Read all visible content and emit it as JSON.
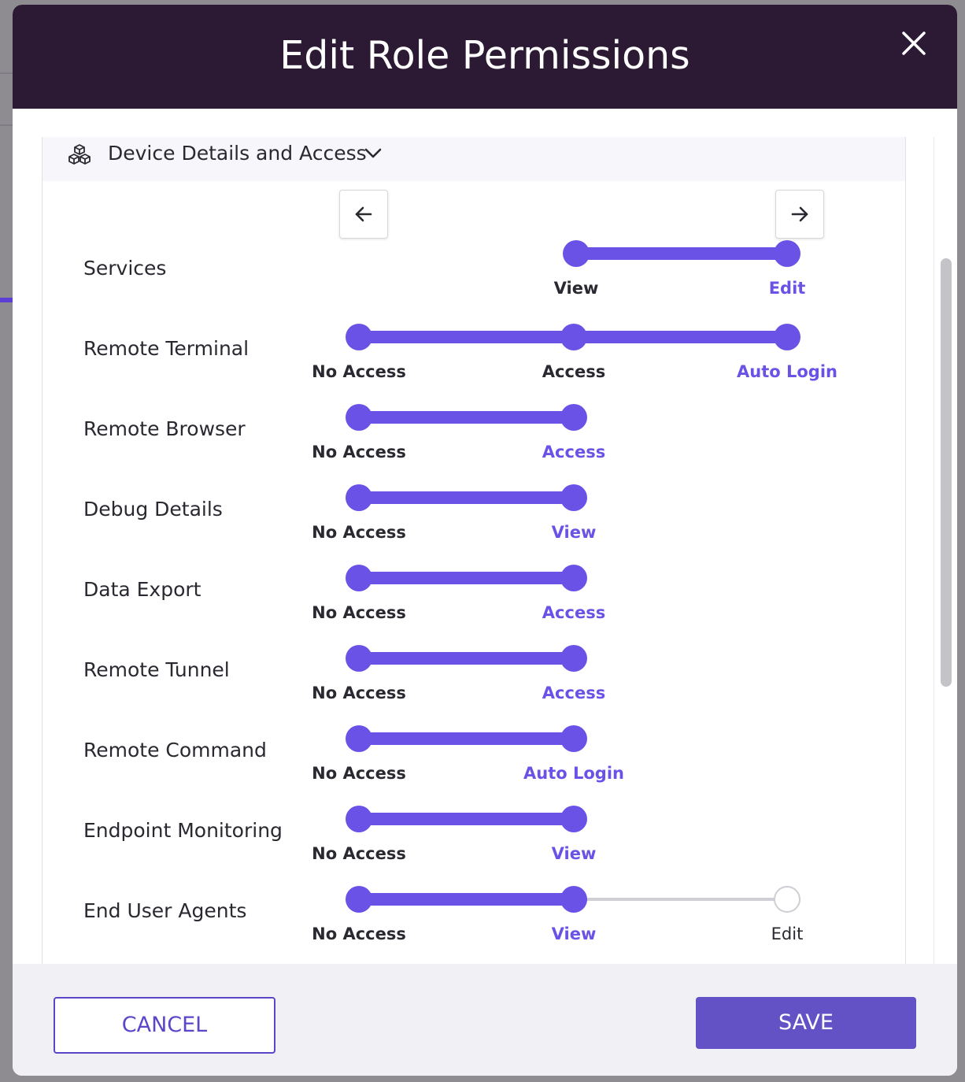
{
  "modal": {
    "title": "Edit Role Permissions",
    "close_icon": "close-icon"
  },
  "section": {
    "title": "Device Details and Access",
    "icon": "cubes-icon",
    "toggle_icon": "chevron-down-icon"
  },
  "nav": {
    "prev_icon": "arrow-left-icon",
    "next_icon": "arrow-right-icon"
  },
  "permissions": [
    {
      "label": "Services",
      "steps": [
        "View",
        "Edit"
      ],
      "selected": 1
    },
    {
      "label": "Remote Terminal",
      "steps": [
        "No Access",
        "Access",
        "Auto Login"
      ],
      "selected": 2
    },
    {
      "label": "Remote Browser",
      "steps": [
        "No Access",
        "Access"
      ],
      "selected": 1
    },
    {
      "label": "Debug Details",
      "steps": [
        "No Access",
        "View"
      ],
      "selected": 1
    },
    {
      "label": "Data Export",
      "steps": [
        "No Access",
        "Access"
      ],
      "selected": 1
    },
    {
      "label": "Remote Tunnel",
      "steps": [
        "No Access",
        "Access"
      ],
      "selected": 1
    },
    {
      "label": "Remote Command",
      "steps": [
        "No Access",
        "Auto Login"
      ],
      "selected": 1
    },
    {
      "label": "Endpoint Monitoring",
      "steps": [
        "No Access",
        "View"
      ],
      "selected": 1
    },
    {
      "label": "End User Agents",
      "steps": [
        "No Access",
        "View",
        "Edit"
      ],
      "selected": 1
    }
  ],
  "footer": {
    "cancel_label": "CANCEL",
    "save_label": "SAVE"
  },
  "colors": {
    "header": "#2c1a34",
    "accent": "#6b52e6",
    "save_button": "#6252c5"
  }
}
